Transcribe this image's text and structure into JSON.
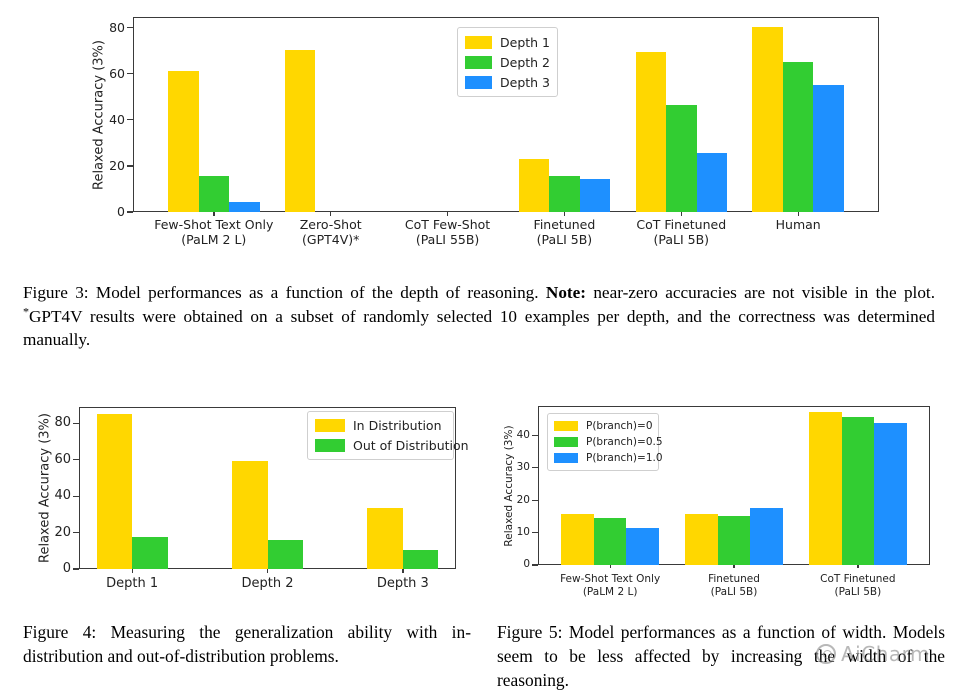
{
  "colors": {
    "yellow": "#FFD700",
    "green": "#32CD32",
    "blue": "#1E90FF",
    "axis": "#3a3a3a"
  },
  "chart_data": [
    {
      "id": "figure3",
      "type": "bar",
      "title": "",
      "xlabel": "",
      "ylabel": "Relaxed Accuracy (3%)",
      "ylim": [
        0,
        84.5
      ],
      "yticks": [
        0,
        20,
        40,
        60,
        80
      ],
      "grid": false,
      "legend_position": "upper-center",
      "categories": [
        "Few-Shot Text Only\n(PaLM 2 L)",
        "Zero-Shot\n(GPT4V)*",
        "CoT Few-Shot\n(PaLI 55B)",
        "Finetuned\n(PaLI 5B)",
        "CoT Finetuned\n(PaLI 5B)",
        "Human"
      ],
      "series": [
        {
          "name": "Depth 1",
          "color": "#FFD700",
          "values": [
            61,
            70,
            0,
            23,
            69.5,
            80
          ]
        },
        {
          "name": "Depth 2",
          "color": "#32CD32",
          "values": [
            15.5,
            0,
            0,
            15.5,
            46.5,
            65
          ]
        },
        {
          "name": "Depth 3",
          "color": "#1E90FF",
          "values": [
            4.5,
            0,
            0,
            14.5,
            25.5,
            55
          ]
        }
      ]
    },
    {
      "id": "figure4",
      "type": "bar",
      "title": "",
      "xlabel": "",
      "ylabel": "Relaxed Accuracy (3%)",
      "ylim": [
        0,
        89
      ],
      "yticks": [
        0,
        20,
        40,
        60,
        80
      ],
      "grid": false,
      "legend_position": "upper-right",
      "categories": [
        "Depth 1",
        "Depth 2",
        "Depth 3"
      ],
      "series": [
        {
          "name": "In Distribution",
          "color": "#FFD700",
          "values": [
            85,
            59.5,
            33.5
          ]
        },
        {
          "name": "Out of Distribution",
          "color": "#32CD32",
          "values": [
            17.5,
            16,
            10.5
          ]
        }
      ]
    },
    {
      "id": "figure5",
      "type": "bar",
      "title": "",
      "xlabel": "",
      "ylabel": "Relaxed Accuracy (3%)",
      "ylim": [
        0,
        49
      ],
      "yticks": [
        0,
        10,
        20,
        30,
        40
      ],
      "grid": false,
      "legend_position": "upper-left",
      "categories": [
        "Few-Shot Text Only\n(PaLM 2 L)",
        "Finetuned\n(PaLI 5B)",
        "CoT Finetuned\n(PaLI 5B)"
      ],
      "series": [
        {
          "name": "P(branch)=0",
          "color": "#FFD700",
          "values": [
            15.7,
            15.7,
            47
          ]
        },
        {
          "name": "P(branch)=0.5",
          "color": "#32CD32",
          "values": [
            14.5,
            15.2,
            45.5
          ]
        },
        {
          "name": "P(branch)=1.0",
          "color": "#1E90FF",
          "values": [
            11.3,
            17.6,
            43.8
          ]
        }
      ]
    }
  ],
  "captions": {
    "fig3": {
      "part1": "Figure 3:  Model performances as a function of the depth of reasoning. ",
      "note_label": "Note:",
      "part2": " near-zero accuracies are not visible in the plot. ",
      "sup": "*",
      "part3": "GPT4V results were obtained on a subset of randomly selected 10 examples per depth, and the correctness was determined manually."
    },
    "fig4": {
      "text": "Figure 4:  Measuring the generalization ability with in-distribution and out-of-distribution problems."
    },
    "fig5": {
      "text": "Figure 5:  Model performances as a function of width. Models seem to be less affected by increasing the width of the reasoning."
    }
  },
  "watermark": {
    "text": "AiCharm"
  }
}
